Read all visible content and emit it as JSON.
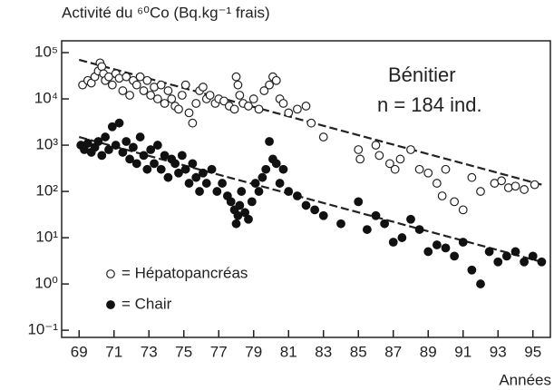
{
  "chart_data": {
    "type": "scatter",
    "title": "Activité du ⁶⁰Co (Bq.kg⁻¹ frais)",
    "x_label": "Années",
    "annotations": [
      "Bénitier",
      "n = 184 ind."
    ],
    "log_y": true,
    "legend": "bottom-left",
    "xlim": [
      68,
      96
    ],
    "ylim": [
      0.07,
      180000
    ],
    "xticks": [
      69,
      71,
      73,
      75,
      77,
      79,
      81,
      83,
      85,
      87,
      89,
      91,
      93,
      95
    ],
    "yticks": [
      {
        "value": 100000,
        "label": "10⁵"
      },
      {
        "value": 10000,
        "label": "10⁴"
      },
      {
        "value": 1000,
        "label": "10³"
      },
      {
        "value": 100,
        "label": "10²"
      },
      {
        "value": 10,
        "label": "10¹"
      },
      {
        "value": 1,
        "label": "10⁰"
      },
      {
        "value": 0.1,
        "label": "10⁻¹"
      }
    ],
    "series": [
      {
        "name": "= Hépatopancréas",
        "marker": "open",
        "color": "#222",
        "x": [
          69.2,
          69.5,
          69.7,
          69.9,
          70.1,
          70.2,
          70.3,
          70.4,
          70.5,
          70.7,
          70.9,
          71.1,
          71.3,
          71.5,
          71.7,
          71.9,
          72.1,
          72.3,
          72.5,
          72.7,
          72.9,
          73.1,
          73.3,
          73.5,
          73.7,
          73.9,
          74.1,
          74.3,
          74.5,
          74.7,
          74.9,
          75.1,
          75.3,
          75.5,
          75.7,
          75.9,
          76.1,
          76.3,
          76.5,
          76.8,
          77.0,
          77.3,
          77.6,
          77.9,
          78.0,
          78.1,
          78.2,
          78.4,
          78.7,
          79.0,
          79.3,
          79.6,
          79.9,
          80.1,
          80.3,
          80.5,
          80.7,
          81.0,
          81.5,
          82.0,
          82.3,
          83.0,
          85.0,
          85.1,
          86.0,
          86.2,
          86.8,
          87.1,
          87.4,
          88.0,
          88.5,
          89.0,
          89.5,
          89.8,
          90.0,
          90.5,
          91.0,
          91.5,
          92.0,
          92.8,
          93.2,
          93.6,
          94.0,
          94.5,
          95.1
        ],
        "values": [
          20000,
          25000,
          22000,
          30000,
          40000,
          60000,
          50000,
          35000,
          25000,
          30000,
          20000,
          35000,
          28000,
          15000,
          30000,
          12000,
          25000,
          20000,
          30000,
          15000,
          25000,
          12000,
          18000,
          10000,
          20000,
          8000,
          15000,
          10000,
          7000,
          6000,
          12000,
          20000,
          5000,
          3000,
          8000,
          15000,
          18000,
          10000,
          12000,
          8000,
          10000,
          9000,
          7000,
          6000,
          30000,
          20000,
          12000,
          8000,
          7000,
          10000,
          6000,
          15000,
          20000,
          30000,
          25000,
          10000,
          8000,
          5000,
          6000,
          7000,
          3000,
          1500,
          800,
          500,
          1000,
          600,
          400,
          300,
          500,
          800,
          300,
          250,
          150,
          80,
          300,
          60,
          40,
          200,
          100,
          150,
          170,
          120,
          130,
          110,
          140
        ]
      },
      {
        "name": "= Chair",
        "marker": "filled",
        "color": "#111",
        "x": [
          69.1,
          69.3,
          69.5,
          69.7,
          69.9,
          70.1,
          70.3,
          70.5,
          70.7,
          70.9,
          71.1,
          71.3,
          71.5,
          71.7,
          71.9,
          72.1,
          72.3,
          72.5,
          72.7,
          72.9,
          73.1,
          73.3,
          73.5,
          73.7,
          73.9,
          74.1,
          74.3,
          74.5,
          74.7,
          74.9,
          75.1,
          75.3,
          75.5,
          75.7,
          75.9,
          76.1,
          76.3,
          76.6,
          76.9,
          77.2,
          77.5,
          77.7,
          77.9,
          78.0,
          78.1,
          78.2,
          78.3,
          78.5,
          78.7,
          78.9,
          79.1,
          79.3,
          79.5,
          79.7,
          79.9,
          80.1,
          80.3,
          80.5,
          80.7,
          81.0,
          81.5,
          82.0,
          82.5,
          83.0,
          84.0,
          85.0,
          85.5,
          86.0,
          86.5,
          87.0,
          87.5,
          88.0,
          88.5,
          89.0,
          89.5,
          90.0,
          90.5,
          91.0,
          91.5,
          92.0,
          92.5,
          93.0,
          93.5,
          94.0,
          94.5,
          95.0,
          95.5
        ],
        "values": [
          1000,
          800,
          1100,
          700,
          900,
          1200,
          600,
          1500,
          800,
          2500,
          1000,
          3000,
          700,
          1200,
          500,
          900,
          400,
          1500,
          600,
          300,
          800,
          400,
          1000,
          300,
          600,
          200,
          500,
          400,
          250,
          600,
          300,
          150,
          400,
          200,
          100,
          250,
          150,
          300,
          100,
          150,
          80,
          60,
          40,
          20,
          30,
          50,
          100,
          35,
          25,
          60,
          150,
          100,
          200,
          300,
          1200,
          500,
          400,
          150,
          300,
          100,
          80,
          50,
          40,
          30,
          20,
          60,
          15,
          30,
          20,
          8,
          10,
          25,
          15,
          5,
          7,
          6,
          4,
          8,
          2,
          1,
          5,
          3,
          4,
          5,
          3,
          4,
          3
        ]
      }
    ],
    "trend_lines": [
      {
        "x": [
          69,
          95.5
        ],
        "values": [
          70000,
          140
        ]
      },
      {
        "x": [
          69,
          95.5
        ],
        "values": [
          1500,
          3
        ]
      }
    ]
  }
}
